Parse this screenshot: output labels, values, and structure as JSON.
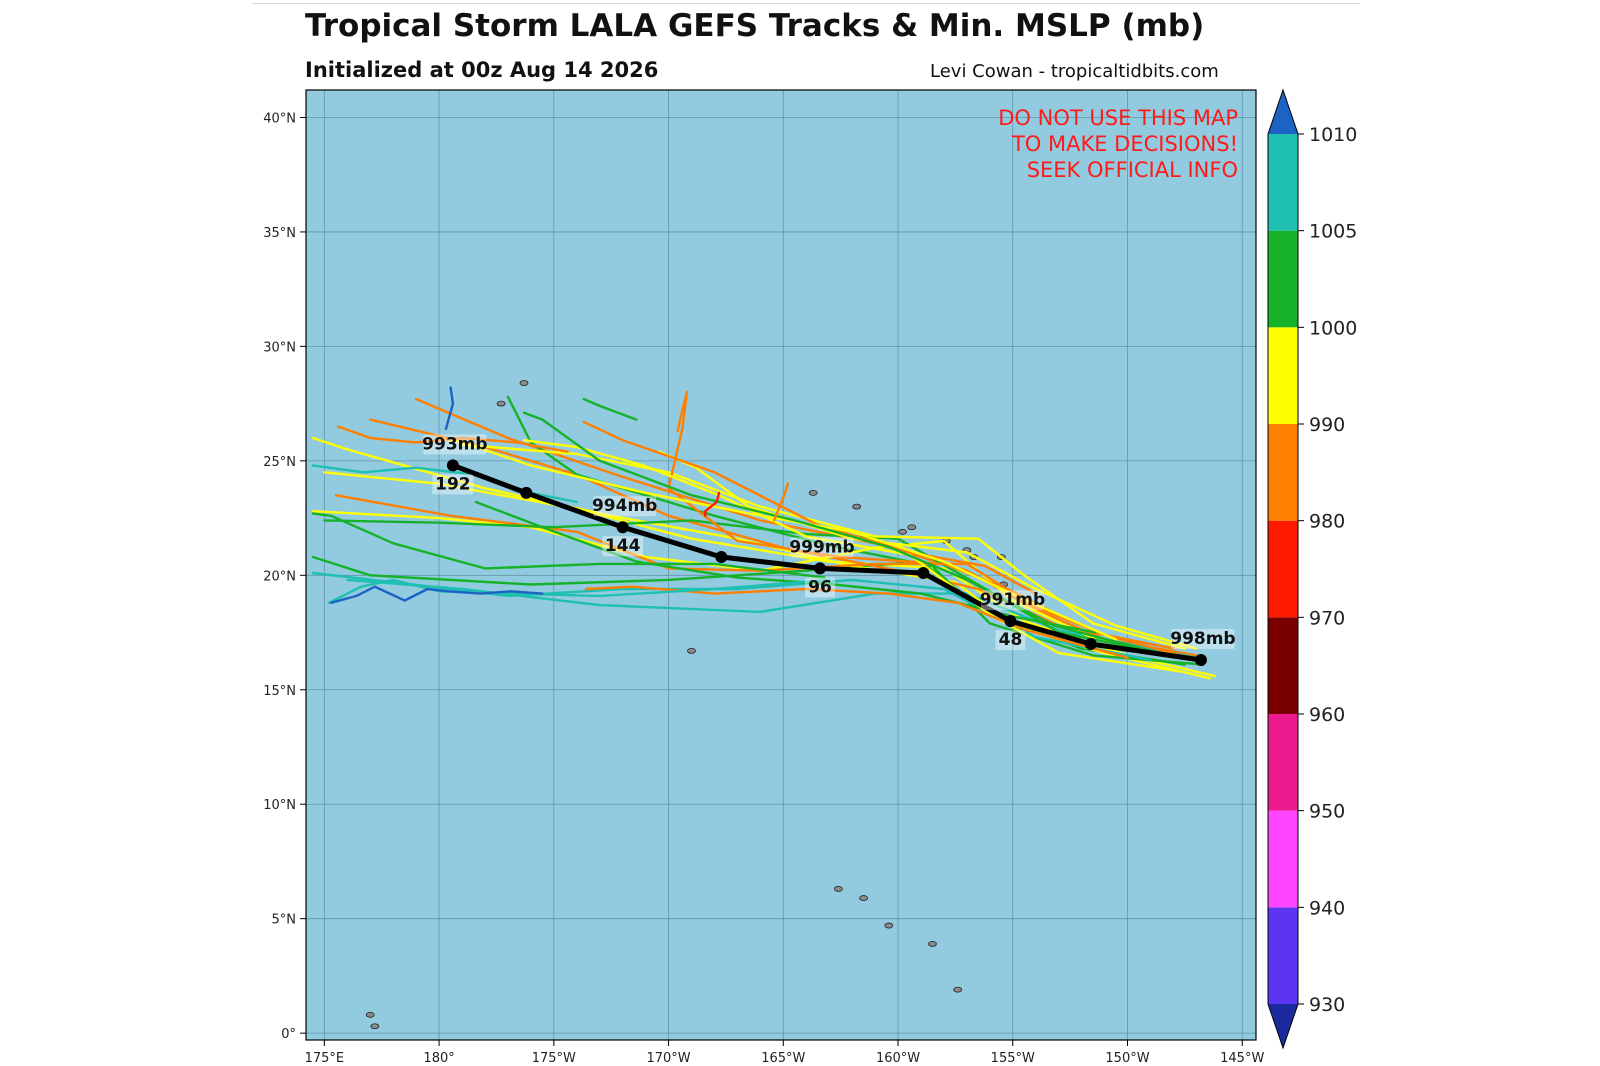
{
  "title": "Tropical Storm LALA GEFS Tracks & Min. MSLP (mb)",
  "subtitle": "Initialized at 00z Aug 14 2026",
  "credit": "Levi Cowan - tropicaltidbits.com",
  "warning": [
    "DO NOT USE THIS MAP",
    "TO MAKE DECISIONS!",
    "SEEK OFFICIAL INFO"
  ],
  "colors": {
    "ocean": "#92cbe0",
    "track_mean": "#000000",
    "warning_text": "#ff1a1a"
  },
  "axes": {
    "lon_ticks": [
      {
        "value": 175,
        "label": "175°E"
      },
      {
        "value": 180,
        "label": "180°"
      },
      {
        "value": 185,
        "label": "175°W"
      },
      {
        "value": 190,
        "label": "170°W"
      },
      {
        "value": 195,
        "label": "165°W"
      },
      {
        "value": 200,
        "label": "160°W"
      },
      {
        "value": 205,
        "label": "155°W"
      },
      {
        "value": 210,
        "label": "150°W"
      },
      {
        "value": 215,
        "label": "145°W"
      }
    ],
    "lat_ticks": [
      {
        "value": 40,
        "label": "40°N"
      },
      {
        "value": 35,
        "label": "35°N"
      },
      {
        "value": 30,
        "label": "30°N"
      },
      {
        "value": 25,
        "label": "25°N"
      },
      {
        "value": 20,
        "label": "20°N"
      },
      {
        "value": 15,
        "label": "15°N"
      },
      {
        "value": 10,
        "label": "10°N"
      },
      {
        "value": 5,
        "label": "5°N"
      },
      {
        "value": 0,
        "label": "0°"
      }
    ],
    "lon_range": [
      174.2,
      215.6
    ],
    "lat_range": [
      -0.3,
      41.2
    ]
  },
  "colorbar": {
    "levels": [
      930,
      940,
      950,
      960,
      970,
      980,
      990,
      1000,
      1005,
      1010
    ],
    "colors": [
      "#5b35f2",
      "#ff44ff",
      "#ee1b8e",
      "#7a0000",
      "#ff1a00",
      "#ff7f00",
      "#ffff00",
      "#16b32a",
      "#1fbfb2"
    ],
    "low_extend_color": "#1a2a9e",
    "high_extend_color": "#1d63c4"
  },
  "mean_track": {
    "points": [
      {
        "lon": 213.2,
        "lat": 16.3,
        "label": "998mb",
        "hour": ""
      },
      {
        "lon": 208.4,
        "lat": 17.0,
        "label": "",
        "hour": ""
      },
      {
        "lon": 204.9,
        "lat": 18.0,
        "label": "991mb",
        "hour": "48"
      },
      {
        "lon": 201.1,
        "lat": 20.1,
        "label": "",
        "hour": ""
      },
      {
        "lon": 196.6,
        "lat": 20.3,
        "label": "999mb",
        "hour": "96"
      },
      {
        "lon": 192.3,
        "lat": 20.8,
        "label": "",
        "hour": ""
      },
      {
        "lon": 188.0,
        "lat": 22.1,
        "label": "994mb",
        "hour": "144"
      },
      {
        "lon": 183.8,
        "lat": 23.6,
        "label": "",
        "hour": ""
      },
      {
        "lon": 180.6,
        "lat": 24.8,
        "label": "993mb",
        "hour": "192"
      }
    ]
  },
  "ensemble_tracks": [
    {
      "pressure": 995,
      "points": [
        [
          213.8,
          15.6
        ],
        [
          210,
          16.5
        ],
        [
          205.5,
          18
        ],
        [
          202,
          20.3
        ],
        [
          197,
          20.6
        ],
        [
          191,
          21.6
        ],
        [
          186,
          22.9
        ],
        [
          180,
          24
        ],
        [
          175,
          24.5
        ]
      ]
    },
    {
      "pressure": 985,
      "points": [
        [
          213,
          16.5
        ],
        [
          209,
          17.2
        ],
        [
          206,
          18.5
        ],
        [
          203,
          20.2
        ],
        [
          199,
          21.4
        ],
        [
          194,
          22.4
        ],
        [
          188,
          24.3
        ],
        [
          183,
          26
        ],
        [
          179,
          27.7
        ]
      ]
    },
    {
      "pressure": 1002,
      "points": [
        [
          212.5,
          16.1
        ],
        [
          208,
          16.8
        ],
        [
          204,
          18.3
        ],
        [
          201,
          20.6
        ],
        [
          196,
          20.2
        ],
        [
          190,
          19.8
        ],
        [
          184,
          19.6
        ],
        [
          177,
          20
        ],
        [
          174.5,
          20.8
        ]
      ]
    },
    {
      "pressure": 1007,
      "points": [
        [
          213,
          16.4
        ],
        [
          207,
          17.6
        ],
        [
          203,
          19.2
        ],
        [
          199,
          19.2
        ],
        [
          194,
          18.4
        ],
        [
          187,
          18.7
        ],
        [
          181,
          19.4
        ],
        [
          176,
          19.8
        ]
      ]
    },
    {
      "pressure": 995,
      "points": [
        [
          213.6,
          15.5
        ],
        [
          209,
          16.6
        ],
        [
          205,
          17.8
        ],
        [
          202.5,
          19.7
        ],
        [
          198,
          20.4
        ],
        [
          193,
          21.6
        ],
        [
          187.5,
          22.6
        ],
        [
          182,
          23.8
        ],
        [
          176,
          25.5
        ],
        [
          174.5,
          26
        ]
      ]
    },
    {
      "pressure": 985,
      "points": [
        [
          212,
          16.8
        ],
        [
          207,
          17.8
        ],
        [
          203.5,
          19.4
        ],
        [
          200,
          20.2
        ],
        [
          195,
          21.2
        ],
        [
          190,
          22.6
        ],
        [
          186,
          24.4
        ],
        [
          182,
          25.6
        ],
        [
          177,
          26.8
        ]
      ]
    },
    {
      "pressure": 1002,
      "points": [
        [
          213.3,
          16.1
        ],
        [
          208.5,
          16.5
        ],
        [
          204,
          17.9
        ],
        [
          201.5,
          20.4
        ],
        [
          197,
          21.3
        ],
        [
          192,
          22.6
        ],
        [
          186,
          24.4
        ],
        [
          184,
          25.8
        ],
        [
          183,
          27.8
        ]
      ]
    },
    {
      "pressure": 995,
      "points": [
        [
          212.8,
          16.3
        ],
        [
          208.6,
          17.2
        ],
        [
          205,
          18.9
        ],
        [
          202,
          21.5
        ],
        [
          199,
          21.2
        ],
        [
          194,
          20.2
        ],
        [
          189,
          20.8
        ],
        [
          184,
          22.1
        ],
        [
          180,
          22.5
        ],
        [
          174.5,
          22.8
        ]
      ]
    },
    {
      "pressure": 985,
      "points": [
        [
          213.4,
          16.2
        ],
        [
          209,
          17.4
        ],
        [
          206,
          18.6
        ],
        [
          203,
          20.5
        ],
        [
          199,
          20.5
        ],
        [
          194,
          20.2
        ],
        [
          190,
          20.3
        ],
        [
          186,
          21.9
        ],
        [
          180.5,
          22.6
        ],
        [
          175.5,
          23.5
        ]
      ]
    },
    {
      "pressure": 1002,
      "points": [
        [
          211.5,
          16.6
        ],
        [
          207,
          17.5
        ],
        [
          204,
          19.3
        ],
        [
          200,
          21.6
        ],
        [
          196,
          21.8
        ],
        [
          191,
          22.4
        ],
        [
          185,
          22.1
        ],
        [
          180,
          22.3
        ],
        [
          175,
          22.4
        ]
      ]
    },
    {
      "pressure": 995,
      "points": [
        [
          212.5,
          16.8
        ],
        [
          208.5,
          17.9
        ],
        [
          205.5,
          20
        ],
        [
          203.5,
          21.6
        ],
        [
          199,
          21.7
        ],
        [
          194,
          23
        ],
        [
          190,
          24.5
        ],
        [
          186,
          25.3
        ],
        [
          181,
          25.7
        ]
      ]
    },
    {
      "pressure": 1007,
      "points": [
        [
          211,
          16.3
        ],
        [
          206,
          17.3
        ],
        [
          202,
          19.4
        ],
        [
          198,
          19.8
        ],
        [
          193,
          19.4
        ],
        [
          188,
          19.4
        ],
        [
          183,
          19.1
        ],
        [
          178,
          19.7
        ],
        [
          174.5,
          20.1
        ]
      ]
    },
    {
      "pressure": 985,
      "points": [
        [
          207.5,
          18
        ],
        [
          205,
          19.3
        ],
        [
          202,
          20.5
        ],
        [
          197.5,
          20.8
        ],
        [
          193,
          21.5
        ],
        [
          190,
          23.8
        ],
        [
          190.6,
          26.4
        ],
        [
          190.8,
          28
        ]
      ]
    },
    {
      "pressure": 995,
      "points": [
        [
          213,
          16.8
        ],
        [
          209.5,
          17.8
        ],
        [
          205.8,
          19.5
        ],
        [
          203,
          21
        ],
        [
          198,
          21.6
        ],
        [
          193.5,
          23
        ],
        [
          191.2,
          24.7
        ],
        [
          189.6,
          25.4
        ]
      ]
    },
    {
      "pressure": 1002,
      "points": [
        [
          208.6,
          17.5
        ],
        [
          205,
          18.2
        ],
        [
          201,
          19.2
        ],
        [
          197.2,
          19.6
        ],
        [
          193,
          19.9
        ],
        [
          188.6,
          20.6
        ],
        [
          184.5,
          22.1
        ],
        [
          181.6,
          23.2
        ]
      ]
    },
    {
      "pressure": 995,
      "points": [
        [
          212.3,
          15.8
        ],
        [
          207,
          16.6
        ],
        [
          204,
          18.3
        ],
        [
          200.5,
          20.9
        ],
        [
          196,
          21.7
        ],
        [
          192.2,
          23.5
        ],
        [
          188.9,
          24.8
        ],
        [
          186,
          25.6
        ],
        [
          183.7,
          25.9
        ]
      ]
    },
    {
      "pressure": 985,
      "points": [
        [
          206,
          19.2
        ],
        [
          203.8,
          20.4
        ],
        [
          200.5,
          21
        ],
        [
          196.5,
          22.2
        ],
        [
          192,
          24.5
        ],
        [
          188,
          25.9
        ],
        [
          186.3,
          26.7
        ]
      ]
    },
    {
      "pressure": 995,
      "points": [
        [
          209.5,
          17.2
        ],
        [
          205.6,
          18.9
        ],
        [
          202,
          20.6
        ],
        [
          198,
          21.9
        ],
        [
          193.5,
          22.7
        ],
        [
          189,
          23.6
        ],
        [
          184,
          24.8
        ],
        [
          181,
          25.8
        ],
        [
          180,
          26
        ]
      ]
    },
    {
      "pressure": 1002,
      "points": [
        [
          211,
          16.7
        ],
        [
          206.8,
          17.8
        ],
        [
          203,
          19.8
        ],
        [
          199.7,
          21.2
        ],
        [
          195.5,
          22.4
        ],
        [
          191,
          23.5
        ],
        [
          187,
          25
        ],
        [
          184.5,
          26.8
        ],
        [
          183.7,
          27.1
        ]
      ]
    },
    {
      "pressure": 985,
      "points": [
        [
          210,
          16.4
        ],
        [
          205.6,
          17.6
        ],
        [
          202.6,
          18.8
        ],
        [
          199.6,
          19.2
        ],
        [
          196,
          19.4
        ],
        [
          192,
          19.2
        ],
        [
          188.4,
          19.5
        ],
        [
          186.4,
          19.4
        ]
      ]
    },
    {
      "pressure": 1007,
      "points": [
        [
          197,
          19.8
        ],
        [
          192,
          19.4
        ],
        [
          187,
          19.1
        ],
        [
          183,
          19.2
        ],
        [
          180,
          19.3
        ],
        [
          178,
          19.8
        ],
        [
          176.6,
          19.5
        ],
        [
          175.2,
          18.8
        ]
      ]
    },
    {
      "pressure": 1002,
      "points": [
        [
          196.8,
          19.9
        ],
        [
          192,
          20.5
        ],
        [
          187,
          20.5
        ],
        [
          182,
          20.3
        ],
        [
          178,
          21.4
        ],
        [
          175.3,
          22.6
        ],
        [
          174.5,
          22.7
        ]
      ]
    },
    {
      "pressure": 1007,
      "points": [
        [
          186,
          23.2
        ],
        [
          184,
          23.6
        ],
        [
          181.5,
          24.4
        ],
        [
          179,
          24.7
        ],
        [
          176.7,
          24.5
        ],
        [
          174.5,
          24.8
        ]
      ]
    },
    {
      "pressure": 985,
      "points": [
        [
          185.6,
          25.4
        ],
        [
          183.4,
          25.8
        ],
        [
          181,
          26
        ],
        [
          179,
          25.8
        ],
        [
          177,
          26
        ],
        [
          175.6,
          26.5
        ]
      ]
    },
    {
      "pressure": 1011,
      "points": [
        [
          184.5,
          19.2
        ],
        [
          183.1,
          19.3
        ],
        [
          181.8,
          19.2
        ],
        [
          180.4,
          19.3
        ],
        [
          179.5,
          19.4
        ],
        [
          178.5,
          18.9
        ],
        [
          177.2,
          19.5
        ],
        [
          176.4,
          19.1
        ],
        [
          175.3,
          18.8
        ]
      ]
    },
    {
      "pressure": 1011,
      "points": [
        [
          180.3,
          26.4
        ],
        [
          180.6,
          27.5
        ],
        [
          180.5,
          28.2
        ]
      ]
    },
    {
      "pressure": 1002,
      "points": [
        [
          188.6,
          26.8
        ],
        [
          187.8,
          27.1
        ],
        [
          187,
          27.4
        ],
        [
          186.3,
          27.7
        ]
      ]
    },
    {
      "pressure": 985,
      "points": [
        [
          190.8,
          28
        ],
        [
          190.6,
          27.2
        ],
        [
          190.4,
          26.3
        ]
      ]
    },
    {
      "pressure": 975,
      "points": [
        [
          192.2,
          23.6
        ],
        [
          192.1,
          23.2
        ],
        [
          191.6,
          22.8
        ],
        [
          191.6,
          22.6
        ]
      ]
    },
    {
      "pressure": 985,
      "points": [
        [
          195.2,
          24
        ],
        [
          195,
          23.4
        ],
        [
          194.6,
          22.4
        ]
      ]
    }
  ],
  "islands": [
    {
      "lon": 200.6,
      "lat": 22.1
    },
    {
      "lon": 202.1,
      "lat": 21.5
    },
    {
      "lon": 203.0,
      "lat": 21.1
    },
    {
      "lon": 203.3,
      "lat": 20.8
    },
    {
      "lon": 204.5,
      "lat": 20.8
    },
    {
      "lon": 204.6,
      "lat": 19.6
    },
    {
      "lon": 200.2,
      "lat": 21.9
    },
    {
      "lon": 198.2,
      "lat": 23.0
    },
    {
      "lon": 196.3,
      "lat": 23.6
    },
    {
      "lon": 191.0,
      "lat": 16.7
    },
    {
      "lon": 182.7,
      "lat": 27.5
    },
    {
      "lon": 183.7,
      "lat": 28.4
    },
    {
      "lon": 201.5,
      "lat": 3.9
    },
    {
      "lon": 202.6,
      "lat": 1.9
    },
    {
      "lon": 198.5,
      "lat": 5.9
    },
    {
      "lon": 197.4,
      "lat": 6.3
    },
    {
      "lon": 199.6,
      "lat": 4.7
    },
    {
      "lon": 177.0,
      "lat": 0.8
    },
    {
      "lon": 177.2,
      "lat": 0.3
    }
  ]
}
